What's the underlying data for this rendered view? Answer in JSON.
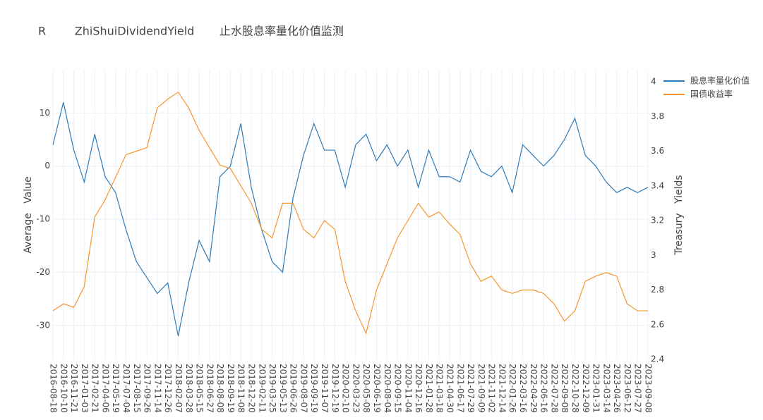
{
  "chart_data": {
    "type": "line",
    "title": "R        ZhiShuiDividendYield       止水股息率量化价值监测",
    "y_label": "Average   Value",
    "y2_label": "Treasury   Yields",
    "x": [
      "2016-08-18",
      "2016-10-10",
      "2016-11-21",
      "2017-01-03",
      "2017-02-21",
      "2017-04-06",
      "2017-05-19",
      "2017-07-04",
      "2017-08-15",
      "2017-09-26",
      "2017-11-14",
      "2017-12-26",
      "2018-02-07",
      "2018-03-28",
      "2018-05-15",
      "2018-06-27",
      "2018-08-08",
      "2018-09-19",
      "2018-11-08",
      "2018-12-20",
      "2019-02-11",
      "2019-03-25",
      "2019-05-13",
      "2019-06-26",
      "2019-08-07",
      "2019-09-19",
      "2019-11-07",
      "2019-12-19",
      "2020-02-10",
      "2020-03-23",
      "2020-05-08",
      "2020-06-19",
      "2020-08-04",
      "2020-09-15",
      "2020-11-04",
      "2020-12-16",
      "2021-01-28",
      "2021-03-18",
      "2021-04-30",
      "2021-06-17",
      "2021-07-29",
      "2021-09-09",
      "2021-11-02",
      "2021-12-14",
      "2022-01-26",
      "2022-03-16",
      "2022-04-29",
      "2022-06-16",
      "2022-07-28",
      "2022-09-08",
      "2022-10-28",
      "2022-12-09",
      "2023-01-31",
      "2023-03-14",
      "2023-04-26",
      "2023-06-12",
      "2023-07-27",
      "2023-09-08"
    ],
    "series": [
      {
        "name": "股息率量化价值",
        "color": "#2f7ab8",
        "axis": "y",
        "values": [
          4,
          12,
          3,
          -3,
          6,
          -2,
          -5,
          -12,
          -18,
          -21,
          -24,
          -22,
          -32,
          -22,
          -14,
          -18,
          -2,
          0,
          8,
          -4,
          -12,
          -18,
          -20,
          -6,
          2,
          8,
          3,
          3,
          -4,
          4,
          6,
          1,
          4,
          0,
          3,
          -4,
          3,
          -2,
          -2,
          -3,
          3,
          -1,
          -2,
          0,
          -5,
          4,
          2,
          0,
          2,
          5,
          9,
          2,
          0,
          -3,
          -5,
          -4,
          -5,
          -4
        ]
      },
      {
        "name": "国债收益率",
        "color": "#f7962f",
        "axis": "y2",
        "values": [
          2.68,
          2.72,
          2.7,
          2.82,
          3.22,
          3.32,
          3.45,
          3.58,
          3.6,
          3.62,
          3.85,
          3.9,
          3.94,
          3.85,
          3.72,
          3.62,
          3.52,
          3.5,
          3.4,
          3.3,
          3.15,
          3.1,
          3.3,
          3.3,
          3.15,
          3.1,
          3.2,
          3.15,
          2.85,
          2.68,
          2.55,
          2.8,
          2.95,
          3.1,
          3.2,
          3.3,
          3.22,
          3.25,
          3.18,
          3.12,
          2.95,
          2.85,
          2.88,
          2.8,
          2.78,
          2.8,
          2.8,
          2.78,
          2.72,
          2.62,
          2.68,
          2.85,
          2.88,
          2.9,
          2.88,
          2.72,
          2.68,
          2.68
        ]
      }
    ],
    "ylim": [
      -36.4,
      18
    ],
    "yticks": [
      -30,
      -20,
      -10,
      0,
      10
    ],
    "y2lim": [
      2.4,
      4.065
    ],
    "y2ticks": [
      2.4,
      2.6,
      2.8,
      3,
      3.2,
      3.4,
      3.6,
      3.8,
      4
    ],
    "grid": true
  }
}
